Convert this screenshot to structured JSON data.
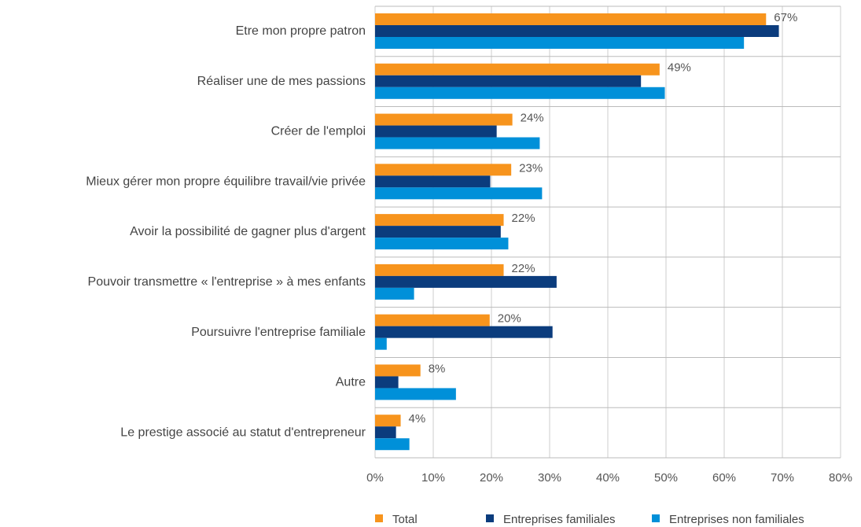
{
  "chart_data": {
    "type": "hbar",
    "categories": [
      "Etre mon propre patron",
      "Réaliser une de mes passions",
      "Créer de l'emploi",
      "Mieux gérer mon propre équilibre travail/vie privée",
      "Avoir la possibilité de gagner plus d'argent",
      "Pouvoir transmettre « l'entreprise » à mes enfants",
      "Poursuivre l'entreprise familiale",
      "Autre",
      "Le prestige associé au statut d'entrepreneur"
    ],
    "series": [
      {
        "name": "Total",
        "color": "#f7941d",
        "values": [
          67.2,
          48.9,
          23.6,
          23.4,
          22.1,
          22.1,
          19.7,
          7.8,
          4.4
        ],
        "value_labels": [
          "67%",
          "49%",
          "24%",
          "23%",
          "22%",
          "22%",
          "20%",
          "8%",
          "4%"
        ]
      },
      {
        "name": "Entreprises familiales",
        "color": "#0b3c7d",
        "values": [
          69.4,
          45.7,
          20.9,
          19.8,
          21.6,
          31.2,
          30.5,
          4.0,
          3.6
        ]
      },
      {
        "name": "Entreprises non familiales",
        "color": "#0090d9",
        "values": [
          63.4,
          49.8,
          28.3,
          28.7,
          22.9,
          6.7,
          2.0,
          13.9,
          5.9
        ]
      }
    ],
    "xlim": [
      0,
      80
    ],
    "xticks": [
      {
        "value": 0,
        "label": "0%"
      },
      {
        "value": 10,
        "label": "10%"
      },
      {
        "value": 20,
        "label": "20%"
      },
      {
        "value": 30,
        "label": "30%"
      },
      {
        "value": 40,
        "label": "40%"
      },
      {
        "value": 50,
        "label": "50%"
      },
      {
        "value": 60,
        "label": "60%"
      },
      {
        "value": 70,
        "label": "70%"
      },
      {
        "value": 80,
        "label": "80%"
      }
    ],
    "grid": true,
    "legend": "bottom"
  }
}
